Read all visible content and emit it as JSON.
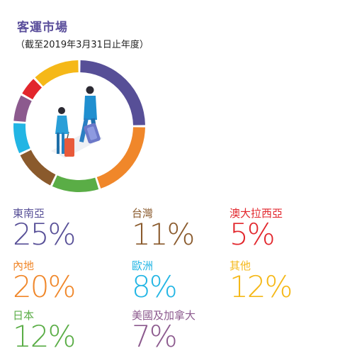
{
  "title": "客運市場",
  "subtitle": "（截至2019年3月31日止年度）",
  "chart_data": {
    "type": "pie",
    "title": "客運市場",
    "subtitle": "（截至2019年3月31日止年度）",
    "slices": [
      {
        "name": "東南亞",
        "value": 25,
        "label": "25%",
        "color": "#574f97"
      },
      {
        "name": "內地",
        "value": 20,
        "label": "20%",
        "color": "#f0872a"
      },
      {
        "name": "日本",
        "value": 12,
        "label": "12%",
        "color": "#5aad46"
      },
      {
        "name": "台灣",
        "value": 11,
        "label": "11%",
        "color": "#8a5a2c"
      },
      {
        "name": "歐洲",
        "value": 8,
        "label": "8%",
        "color": "#22b5e4"
      },
      {
        "name": "美國及加拿大",
        "value": 7,
        "label": "7%",
        "color": "#8c5a8e"
      },
      {
        "name": "澳大拉西亞",
        "value": 5,
        "label": "5%",
        "color": "#e2262c"
      },
      {
        "name": "其他",
        "value": 12,
        "label": "12%",
        "color": "#f5b818"
      }
    ]
  }
}
